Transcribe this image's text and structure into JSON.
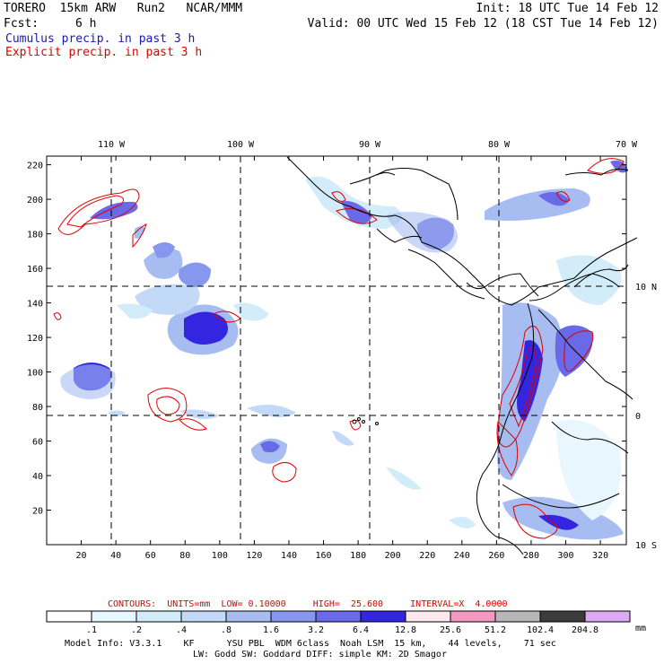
{
  "header": {
    "title_left": "TORERO  15km ARW   Run2   NCAR/MMM",
    "init": "Init: 18 UTC Tue 14 Feb 12",
    "fcst_label": "Fcst:",
    "fcst_value": "6 h",
    "valid": "Valid: 00 UTC Wed 15 Feb 12 (18 CST Tue 14 Feb 12)",
    "legend_cumulus": "Cumulus precip. in past 3 h",
    "legend_explicit": "Explicit precip. in past 3 h"
  },
  "map": {
    "lon_labels": [
      "110 W",
      "100 W",
      "90 W",
      "80 W",
      "70 W"
    ],
    "lat_labels": [
      "10 N",
      "0",
      "10 S"
    ],
    "y_ticks": [
      "220",
      "200",
      "180",
      "160",
      "140",
      "120",
      "100",
      "80",
      "60",
      "40",
      "20"
    ],
    "x_ticks": [
      "20",
      "40",
      "60",
      "80",
      "100",
      "120",
      "140",
      "160",
      "180",
      "200",
      "220",
      "240",
      "260",
      "280",
      "300",
      "320"
    ],
    "x_range": [
      0,
      335
    ],
    "y_range": [
      0,
      225
    ]
  },
  "contours_line": {
    "label": "CONTOURS:  UNITS=mm  LOW= 0.10000     HIGH=  25.600     INTERVAL=X  4.0000"
  },
  "colorbar": {
    "labels": [
      ".1",
      ".2",
      ".4",
      ".8",
      "1.6",
      "3.2",
      "6.4",
      "12.8",
      "25.6",
      "51.2",
      "102.4",
      "204.8"
    ],
    "unit": "mm",
    "colors": [
      "#ffffff",
      "#e8f6fd",
      "#d2ecfa",
      "#c2daf7",
      "#a7bdf2",
      "#8797ee",
      "#6a69e7",
      "#3426e0",
      "#fde8ed",
      "#f398c0",
      "#b6b6b6",
      "#3c3c3c",
      "#dcaaf5"
    ]
  },
  "footer": {
    "line1": "Model Info: V3.3.1    KF      YSU PBL  WDM 6class  Noah LSM  15 km,    44 levels,    71 sec",
    "line2": "LW: Godd SW: Goddard DIFF: simple KM: 2D Smagor"
  },
  "colors": {
    "cumulus": "#1a1aa6",
    "explicit": "#e00000",
    "land": "#000000"
  }
}
